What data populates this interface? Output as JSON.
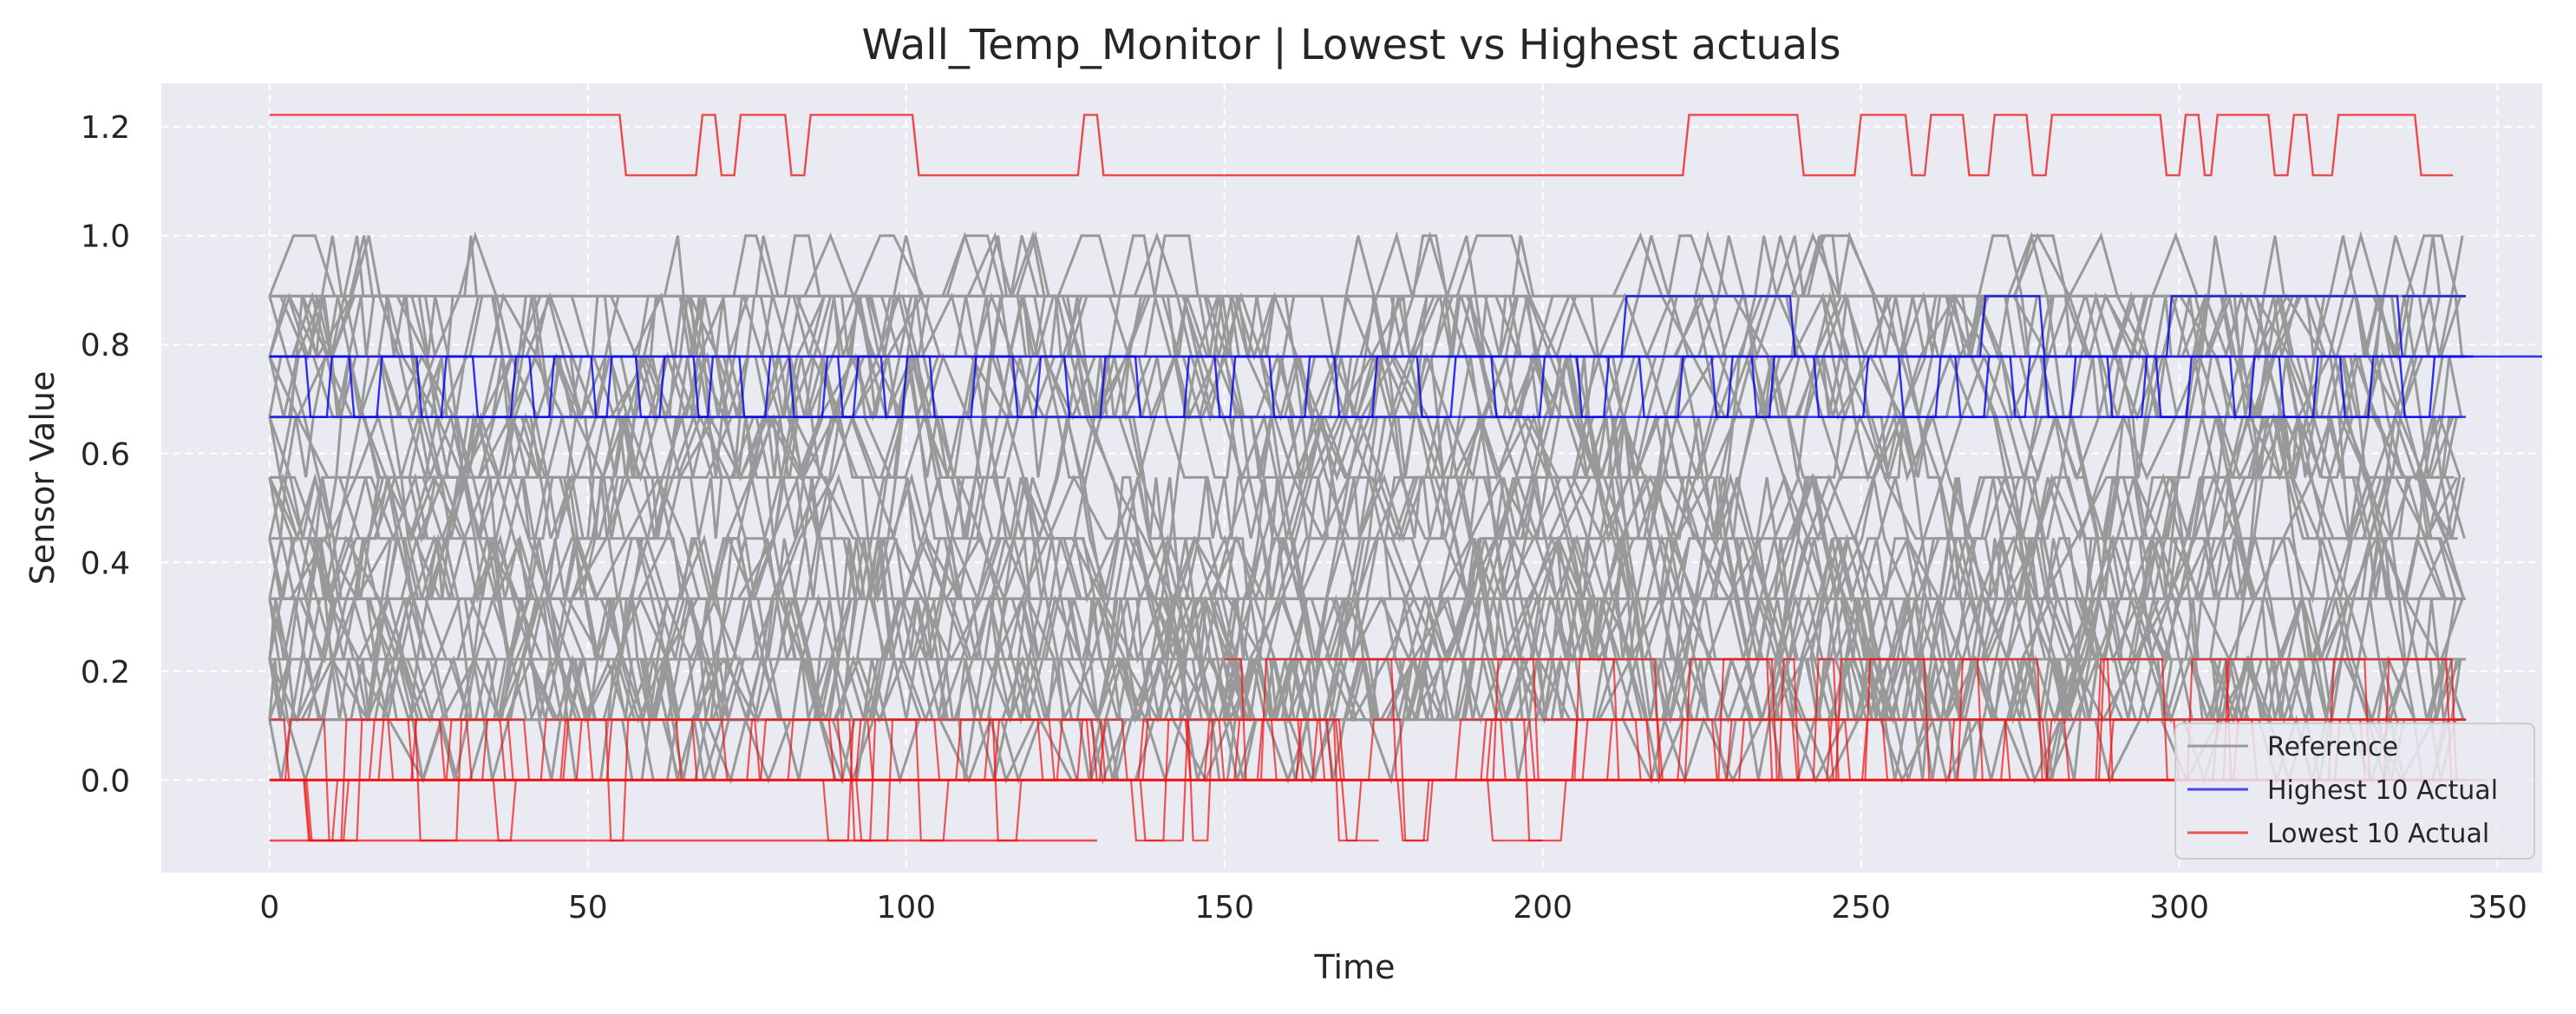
{
  "chart_data": {
    "type": "line",
    "title": "Wall_Temp_Monitor | Lowest vs Highest actuals",
    "xlabel": "Time",
    "ylabel": "Sensor Value",
    "xlim": [
      -17,
      357
    ],
    "ylim": [
      -0.17,
      1.28
    ],
    "x_ticks": [
      0,
      50,
      100,
      150,
      200,
      250,
      300,
      350
    ],
    "y_ticks": [
      0.0,
      0.2,
      0.4,
      0.6,
      0.8,
      1.0,
      1.2
    ],
    "x_tick_labels": [
      "0",
      "50",
      "100",
      "150",
      "200",
      "250",
      "300",
      "350"
    ],
    "y_tick_labels": [
      "0.0",
      "0.2",
      "0.4",
      "0.6",
      "0.8",
      "1.0",
      "1.2"
    ],
    "grid": true,
    "legend_position": "lower-right",
    "background_color": "#eaeaf2",
    "series": [
      {
        "name": "Reference",
        "color": "#999999",
        "x_range": [
          0,
          345
        ],
        "value_levels": [
          0.0,
          0.111,
          0.222,
          0.333,
          0.444,
          0.556,
          0.667,
          0.778,
          0.889,
          1.0
        ],
        "band": [
          0.111,
          0.889
        ],
        "line_count": 40
      },
      {
        "name": "Highest 10 Actual",
        "color": "#0000ee",
        "x_range": [
          0,
          345
        ],
        "segments": [
          {
            "x": [
              0,
              345
            ],
            "y": [
              0.778,
              0.778
            ]
          },
          {
            "x": [
              0,
              345
            ],
            "y": [
              0.667,
              0.667
            ]
          },
          {
            "x": [
              0,
              345
            ],
            "y": [
              0.778,
              0.667
            ],
            "switch_every": 3.5
          },
          {
            "x": [
              185,
              345
            ],
            "y": [
              0.778,
              0.889
            ],
            "switch_every": 18
          },
          {
            "x": [
              335,
              345
            ],
            "y": [
              0.889,
              0.889
            ]
          }
        ]
      },
      {
        "name": "Lowest 10 Actual",
        "color": "#ee1111",
        "x_range": [
          0,
          345
        ],
        "top_line": {
          "x": [
            0,
            55,
            56,
            67,
            68,
            70,
            71,
            73,
            74,
            81,
            82,
            84,
            85,
            101,
            102,
            127,
            128,
            130,
            131,
            222,
            223,
            240,
            241,
            249,
            250,
            257,
            258,
            260,
            261,
            266,
            267,
            270,
            271,
            276,
            277,
            279,
            280,
            297,
            298,
            300,
            301,
            303,
            304,
            305,
            306,
            314,
            315,
            317,
            318,
            320,
            321,
            324,
            325,
            337,
            338,
            343
          ],
          "y": [
            1.222,
            1.222,
            1.111,
            1.111,
            1.222,
            1.222,
            1.111,
            1.111,
            1.222,
            1.222,
            1.111,
            1.111,
            1.222,
            1.222,
            1.111,
            1.111,
            1.222,
            1.222,
            1.111,
            1.111,
            1.222,
            1.222,
            1.111,
            1.111,
            1.222,
            1.222,
            1.111,
            1.111,
            1.222,
            1.222,
            1.111,
            1.111,
            1.222,
            1.222,
            1.111,
            1.111,
            1.222,
            1.222,
            1.111,
            1.111,
            1.222,
            1.222,
            1.111,
            1.111,
            1.222,
            1.222,
            1.111,
            1.111,
            1.222,
            1.222,
            1.111,
            1.111,
            1.222,
            1.222,
            1.111,
            1.111
          ]
        },
        "bottom_levels": [
          -0.111,
          0.0,
          0.111,
          0.222
        ]
      }
    ]
  }
}
